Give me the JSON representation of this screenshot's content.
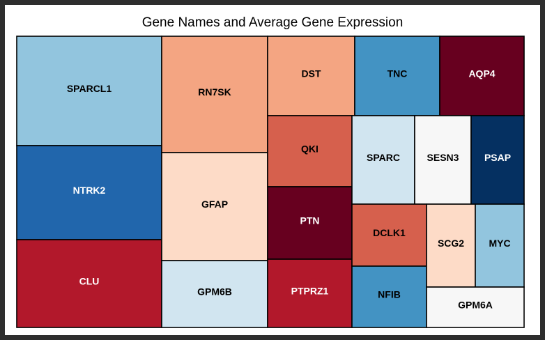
{
  "chart_data": {
    "type": "treemap",
    "title": "Gene Names and Average Gene Expression",
    "legend": "none",
    "palette_note": "Diverging red-blue colour scale indicates average expression",
    "tiles": [
      {
        "name": "SPARCL1",
        "color": "#92c5de",
        "label_color": "#000000"
      },
      {
        "name": "NTRK2",
        "color": "#2166ac",
        "label_color": "#ffffff"
      },
      {
        "name": "CLU",
        "color": "#b2182b",
        "label_color": "#ffffff"
      },
      {
        "name": "RN7SK",
        "color": "#f4a582",
        "label_color": "#000000"
      },
      {
        "name": "GFAP",
        "color": "#fddbc7",
        "label_color": "#000000"
      },
      {
        "name": "GPM6B",
        "color": "#d1e5f0",
        "label_color": "#000000"
      },
      {
        "name": "DST",
        "color": "#f4a582",
        "label_color": "#000000"
      },
      {
        "name": "QKI",
        "color": "#d6604d",
        "label_color": "#000000"
      },
      {
        "name": "PTN",
        "color": "#67001f",
        "label_color": "#ffffff"
      },
      {
        "name": "PTPRZ1",
        "color": "#b2182b",
        "label_color": "#ffffff"
      },
      {
        "name": "TNC",
        "color": "#4393c3",
        "label_color": "#000000"
      },
      {
        "name": "AQP4",
        "color": "#67001f",
        "label_color": "#ffffff"
      },
      {
        "name": "SPARC",
        "color": "#d1e5f0",
        "label_color": "#000000"
      },
      {
        "name": "SESN3",
        "color": "#f7f7f7",
        "label_color": "#000000"
      },
      {
        "name": "PSAP",
        "color": "#053061",
        "label_color": "#ffffff"
      },
      {
        "name": "DCLK1",
        "color": "#d6604d",
        "label_color": "#000000"
      },
      {
        "name": "NFIB",
        "color": "#4393c3",
        "label_color": "#000000"
      },
      {
        "name": "SCG2",
        "color": "#fddbc7",
        "label_color": "#000000"
      },
      {
        "name": "MYC",
        "color": "#92c5de",
        "label_color": "#000000"
      },
      {
        "name": "GPM6A",
        "color": "#f7f7f7",
        "label_color": "#000000"
      }
    ]
  }
}
